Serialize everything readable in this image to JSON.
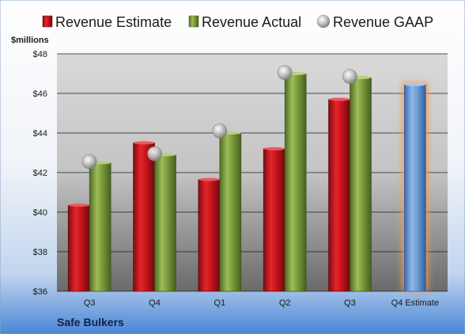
{
  "chart_data": {
    "type": "bar",
    "categories": [
      "Q3",
      "Q4",
      "Q1",
      "Q2",
      "Q3",
      "Q4 Estimate"
    ],
    "series": [
      {
        "name": "Revenue Estimate",
        "kind": "bar",
        "color": "#c8141c",
        "values": [
          40.35,
          43.5,
          41.65,
          43.2,
          45.7,
          46.45
        ]
      },
      {
        "name": "Revenue Actual",
        "kind": "bar",
        "color": "#7a9a3c",
        "values": [
          42.5,
          42.9,
          44.0,
          47.0,
          46.8,
          null
        ]
      },
      {
        "name": "Revenue GAAP",
        "kind": "marker",
        "color": "#a9a9a9",
        "values": [
          42.55,
          42.95,
          44.1,
          47.05,
          46.85,
          null
        ]
      }
    ],
    "estimate_color": "#6f9fd8",
    "estimate_glow": "#f0a050",
    "ylabel": "$millions",
    "ylim": [
      36,
      48
    ],
    "yticks": [
      "$36",
      "$38",
      "$40",
      "$42",
      "$44",
      "$46",
      "$48"
    ],
    "yticks_values": [
      36,
      38,
      40,
      42,
      44,
      46,
      48
    ],
    "grid": true,
    "legend_position": "top",
    "company": "Safe Bulkers"
  }
}
